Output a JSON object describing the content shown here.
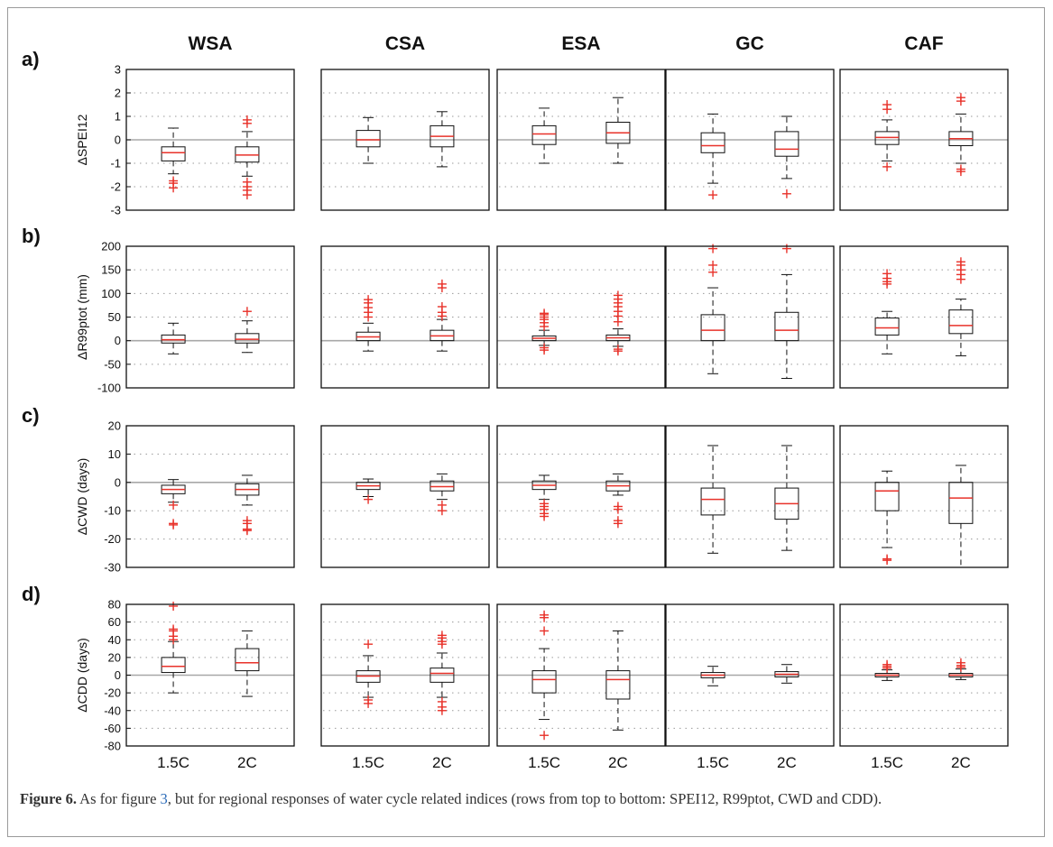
{
  "figure": {
    "columns": [
      "WSA",
      "CSA",
      "ESA",
      "GC",
      "CAF"
    ],
    "rows": [
      {
        "label": "a)",
        "ylabel": "ΔSPEI12",
        "ylim": [
          -3,
          3
        ],
        "yticks": [
          "3",
          "2",
          "1",
          "0",
          "-1",
          "-2",
          "-3"
        ],
        "ytick_values": [
          3,
          2,
          1,
          0,
          -1,
          -2,
          -3
        ]
      },
      {
        "label": "b)",
        "ylabel": "ΔR99ptot (mm)",
        "ylim": [
          -100,
          200
        ],
        "yticks": [
          "200",
          "150",
          "100",
          "50",
          "0",
          "-50",
          "-100"
        ],
        "ytick_values": [
          200,
          150,
          100,
          50,
          0,
          -50,
          -100
        ]
      },
      {
        "label": "c)",
        "ylabel": "ΔCWD (days)",
        "ylim": [
          -30,
          20
        ],
        "yticks": [
          "20",
          "10",
          "0",
          "-10",
          "-20",
          "-30"
        ],
        "ytick_values": [
          20,
          10,
          0,
          -10,
          -20,
          -30
        ]
      },
      {
        "label": "d)",
        "ylabel": "ΔCDD (days)",
        "ylim": [
          -80,
          80
        ],
        "yticks": [
          "80",
          "60",
          "40",
          "20",
          "0",
          "-20",
          "-40",
          "-60",
          "-80"
        ],
        "ytick_values": [
          80,
          60,
          40,
          20,
          0,
          -20,
          -40,
          -60,
          -80
        ]
      }
    ],
    "x_categories": [
      "1.5C",
      "2C"
    ]
  },
  "chart_data": {
    "type": "boxplot",
    "x": [
      "1.5C",
      "2C"
    ],
    "panels": [
      {
        "row": "SPEI12",
        "region": "WSA",
        "boxes": [
          {
            "x": "1.5C",
            "q1": -0.9,
            "median": -0.55,
            "q3": -0.3,
            "whisker_low": -1.45,
            "whisker_high": 0.5,
            "outliers": [
              -1.75,
              -1.85,
              -2.05
            ]
          },
          {
            "x": "2C",
            "q1": -0.95,
            "median": -0.65,
            "q3": -0.3,
            "whisker_low": -1.55,
            "whisker_high": 0.35,
            "outliers": [
              0.7,
              0.85,
              -1.8,
              -2.0,
              -2.15,
              -2.35
            ]
          }
        ]
      },
      {
        "row": "SPEI12",
        "region": "CSA",
        "boxes": [
          {
            "x": "1.5C",
            "q1": -0.3,
            "median": 0.0,
            "q3": 0.4,
            "whisker_low": -1.0,
            "whisker_high": 0.95,
            "outliers": []
          },
          {
            "x": "2C",
            "q1": -0.3,
            "median": 0.15,
            "q3": 0.6,
            "whisker_low": -1.15,
            "whisker_high": 1.2,
            "outliers": []
          }
        ]
      },
      {
        "row": "SPEI12",
        "region": "ESA",
        "boxes": [
          {
            "x": "1.5C",
            "q1": -0.2,
            "median": 0.25,
            "q3": 0.6,
            "whisker_low": -1.0,
            "whisker_high": 1.35,
            "outliers": []
          },
          {
            "x": "2C",
            "q1": -0.15,
            "median": 0.3,
            "q3": 0.75,
            "whisker_low": -1.0,
            "whisker_high": 1.8,
            "outliers": []
          }
        ]
      },
      {
        "row": "SPEI12",
        "region": "GC",
        "boxes": [
          {
            "x": "1.5C",
            "q1": -0.55,
            "median": -0.25,
            "q3": 0.3,
            "whisker_low": -1.85,
            "whisker_high": 1.1,
            "outliers": [
              -2.35
            ]
          },
          {
            "x": "2C",
            "q1": -0.7,
            "median": -0.4,
            "q3": 0.35,
            "whisker_low": -1.65,
            "whisker_high": 1.0,
            "outliers": [
              -2.3
            ]
          }
        ]
      },
      {
        "row": "SPEI12",
        "region": "CAF",
        "boxes": [
          {
            "x": "1.5C",
            "q1": -0.2,
            "median": 0.1,
            "q3": 0.35,
            "whisker_low": -0.9,
            "whisker_high": 0.85,
            "outliers": [
              1.3,
              1.5,
              -1.15
            ]
          },
          {
            "x": "2C",
            "q1": -0.25,
            "median": 0.05,
            "q3": 0.35,
            "whisker_low": -1.0,
            "whisker_high": 1.1,
            "outliers": [
              1.65,
              1.8,
              -1.25,
              -1.35
            ]
          }
        ]
      },
      {
        "row": "R99ptot",
        "region": "WSA",
        "boxes": [
          {
            "x": "1.5C",
            "q1": -5,
            "median": 2,
            "q3": 12,
            "whisker_low": -28,
            "whisker_high": 37,
            "outliers": []
          },
          {
            "x": "2C",
            "q1": -5,
            "median": 3,
            "q3": 15,
            "whisker_low": -25,
            "whisker_high": 42,
            "outliers": [
              62
            ]
          }
        ]
      },
      {
        "row": "R99ptot",
        "region": "CSA",
        "boxes": [
          {
            "x": "1.5C",
            "q1": 0,
            "median": 8,
            "q3": 18,
            "whisker_low": -22,
            "whisker_high": 37,
            "outliers": [
              50,
              60,
              70,
              80,
              87
            ]
          },
          {
            "x": "2C",
            "q1": 0,
            "median": 10,
            "q3": 22,
            "whisker_low": -22,
            "whisker_high": 45,
            "outliers": [
              52,
              60,
              72,
              112,
              120
            ]
          }
        ]
      },
      {
        "row": "R99ptot",
        "region": "ESA",
        "boxes": [
          {
            "x": "1.5C",
            "q1": 0,
            "median": 5,
            "q3": 10,
            "whisker_low": -10,
            "whisker_high": 22,
            "outliers": [
              30,
              38,
              45,
              50,
              55,
              58,
              -15,
              -20
            ]
          },
          {
            "x": "2C",
            "q1": 0,
            "median": 6,
            "q3": 12,
            "whisker_low": -12,
            "whisker_high": 25,
            "outliers": [
              40,
              52,
              62,
              72,
              80,
              88,
              96,
              -18,
              -22
            ]
          }
        ]
      },
      {
        "row": "R99ptot",
        "region": "GC",
        "boxes": [
          {
            "x": "1.5C",
            "q1": 0,
            "median": 22,
            "q3": 55,
            "whisker_low": -70,
            "whisker_high": 112,
            "outliers": [
              145,
              160,
              195
            ]
          },
          {
            "x": "2C",
            "q1": 0,
            "median": 22,
            "q3": 60,
            "whisker_low": -80,
            "whisker_high": 140,
            "outliers": [
              195
            ]
          }
        ]
      },
      {
        "row": "R99ptot",
        "region": "CAF",
        "boxes": [
          {
            "x": "1.5C",
            "q1": 12,
            "median": 27,
            "q3": 48,
            "whisker_low": -28,
            "whisker_high": 62,
            "outliers": [
              120,
              125,
              132,
              142
            ]
          },
          {
            "x": "2C",
            "q1": 15,
            "median": 32,
            "q3": 65,
            "whisker_low": -32,
            "whisker_high": 88,
            "outliers": [
              130,
              140,
              150,
              160,
              167
            ]
          }
        ]
      },
      {
        "row": "CWD",
        "region": "WSA",
        "boxes": [
          {
            "x": "1.5C",
            "q1": -4,
            "median": -2.5,
            "q3": -1,
            "whisker_low": -7,
            "whisker_high": 1,
            "outliers": [
              -8,
              -14.5,
              -15
            ]
          },
          {
            "x": "2C",
            "q1": -4.5,
            "median": -2.5,
            "q3": -0.5,
            "whisker_low": -8,
            "whisker_high": 2.5,
            "outliers": [
              -13.5,
              -14.5,
              -16.5,
              -17
            ]
          }
        ]
      },
      {
        "row": "CWD",
        "region": "CSA",
        "boxes": [
          {
            "x": "1.5C",
            "q1": -2.5,
            "median": -1.2,
            "q3": 0,
            "whisker_low": -5,
            "whisker_high": 1.2,
            "outliers": [
              -6
            ]
          },
          {
            "x": "2C",
            "q1": -3,
            "median": -1.5,
            "q3": 0.5,
            "whisker_low": -6,
            "whisker_high": 3,
            "outliers": [
              -8,
              -10
            ]
          }
        ]
      },
      {
        "row": "CWD",
        "region": "ESA",
        "boxes": [
          {
            "x": "1.5C",
            "q1": -2.5,
            "median": -1,
            "q3": 0.5,
            "whisker_low": -6,
            "whisker_high": 2.5,
            "outliers": [
              -7.5,
              -8.5,
              -9.5,
              -11,
              -12
            ]
          },
          {
            "x": "2C",
            "q1": -3,
            "median": -1.2,
            "q3": 0.5,
            "whisker_low": -4.5,
            "whisker_high": 3,
            "outliers": [
              -8.5,
              -9.5,
              -13.5,
              -14.5
            ]
          }
        ]
      },
      {
        "row": "CWD",
        "region": "GC",
        "boxes": [
          {
            "x": "1.5C",
            "q1": -11.5,
            "median": -6,
            "q3": -2,
            "whisker_low": -25,
            "whisker_high": 13,
            "outliers": []
          },
          {
            "x": "2C",
            "q1": -13,
            "median": -7.5,
            "q3": -2,
            "whisker_low": -24,
            "whisker_high": 13,
            "outliers": []
          }
        ]
      },
      {
        "row": "CWD",
        "region": "CAF",
        "boxes": [
          {
            "x": "1.5C",
            "q1": -10,
            "median": -3,
            "q3": 0,
            "whisker_low": -23,
            "whisker_high": 4,
            "outliers": [
              -27,
              -27.5
            ]
          },
          {
            "x": "2C",
            "q1": -14.5,
            "median": -5.5,
            "q3": 0,
            "whisker_low": -30,
            "whisker_high": 6,
            "outliers": []
          }
        ]
      },
      {
        "row": "CDD",
        "region": "WSA",
        "boxes": [
          {
            "x": "1.5C",
            "q1": 3,
            "median": 10,
            "q3": 20,
            "whisker_low": -20,
            "whisker_high": 38,
            "outliers": [
              40,
              44,
              50,
              52,
              78
            ]
          },
          {
            "x": "2C",
            "q1": 5,
            "median": 14,
            "q3": 30,
            "whisker_low": -24,
            "whisker_high": 50,
            "outliers": []
          }
        ]
      },
      {
        "row": "CDD",
        "region": "CSA",
        "boxes": [
          {
            "x": "1.5C",
            "q1": -8,
            "median": -1,
            "q3": 5,
            "whisker_low": -25,
            "whisker_high": 22,
            "outliers": [
              35,
              -28,
              -32
            ]
          },
          {
            "x": "2C",
            "q1": -8,
            "median": 2,
            "q3": 8,
            "whisker_low": -25,
            "whisker_high": 25,
            "outliers": [
              35,
              38,
              42,
              45,
              -30,
              -36,
              -40
            ]
          }
        ]
      },
      {
        "row": "CDD",
        "region": "ESA",
        "boxes": [
          {
            "x": "1.5C",
            "q1": -20,
            "median": -5,
            "q3": 5,
            "whisker_low": -50,
            "whisker_high": 30,
            "outliers": [
              50,
              65,
              68,
              -68
            ]
          },
          {
            "x": "2C",
            "q1": -27,
            "median": -5,
            "q3": 5,
            "whisker_low": -62,
            "whisker_high": 50,
            "outliers": []
          }
        ]
      },
      {
        "row": "CDD",
        "region": "GC",
        "boxes": [
          {
            "x": "1.5C",
            "q1": -3,
            "median": 0,
            "q3": 3,
            "whisker_low": -12,
            "whisker_high": 10,
            "outliers": []
          },
          {
            "x": "2C",
            "q1": -2,
            "median": 1,
            "q3": 4,
            "whisker_low": -9,
            "whisker_high": 12,
            "outliers": []
          }
        ]
      },
      {
        "row": "CDD",
        "region": "CAF",
        "boxes": [
          {
            "x": "1.5C",
            "q1": -2,
            "median": 0,
            "q3": 2,
            "whisker_low": -6,
            "whisker_high": 6,
            "outliers": [
              8,
              10,
              12
            ]
          },
          {
            "x": "2C",
            "q1": -2,
            "median": 0,
            "q3": 2,
            "whisker_low": -5,
            "whisker_high": 7,
            "outliers": [
              9,
              11,
              14
            ]
          }
        ]
      }
    ]
  },
  "caption": {
    "label": "Figure 6.",
    "text_before_ref": " As for figure ",
    "ref": "3",
    "text_after_ref": ", but for regional responses of water cycle related indices (rows from top to bottom: SPEI12, R99ptot, CWD and CDD)."
  }
}
